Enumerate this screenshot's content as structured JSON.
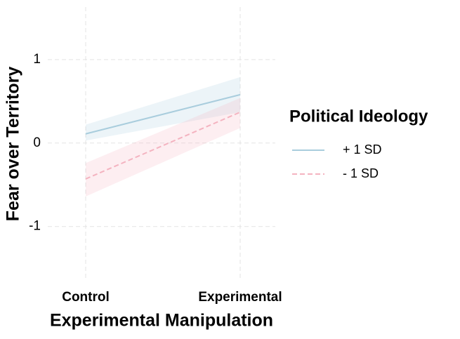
{
  "chart_data": {
    "type": "line",
    "x_label": "Experimental Manipulation",
    "y_label": "Fear over Territory",
    "categories": [
      "Control",
      "Experimental"
    ],
    "ylim": [
      -1.65,
      1.63
    ],
    "yticks": [
      -1,
      0,
      1
    ],
    "grid": true,
    "legend_title": "Political Ideology",
    "legend_position": "right",
    "series": [
      {
        "name": "+ 1 SD",
        "color": "#a9cddd",
        "dash": "solid",
        "values": [
          0.11,
          0.58
        ],
        "ci_lower": [
          0.03,
          0.37
        ],
        "ci_upper": [
          0.22,
          0.79
        ]
      },
      {
        "name": "- 1 SD",
        "color": "#f4b3c0",
        "dash": "dashed",
        "values": [
          -0.43,
          0.37
        ],
        "ci_lower": [
          -0.64,
          0.18
        ],
        "ci_upper": [
          -0.24,
          0.54
        ]
      }
    ]
  }
}
